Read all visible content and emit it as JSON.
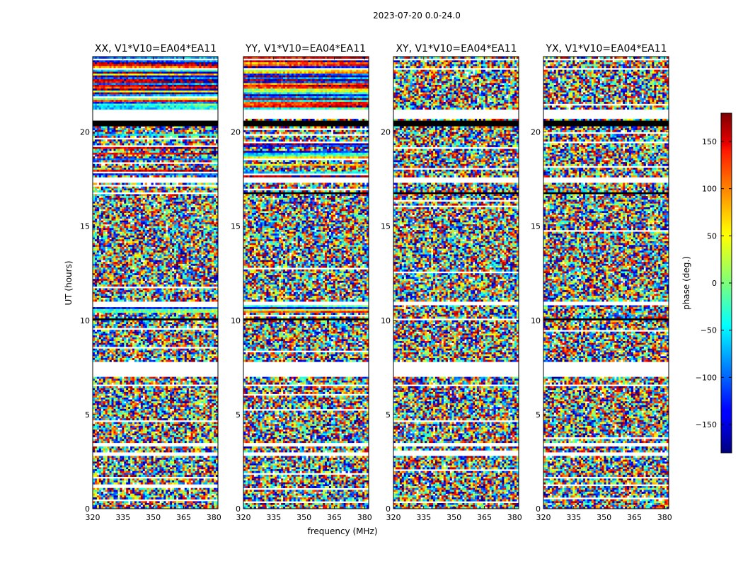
{
  "chart_data": {
    "type": "heatmap",
    "title": "2023-07-20 0.0-24.0",
    "xlabel": "frequency (MHz)",
    "ylabel": "UT (hours)",
    "xlim": [
      320,
      382
    ],
    "ylim": [
      0,
      24
    ],
    "x_ticks": [
      "320",
      "335",
      "350",
      "365",
      "380"
    ],
    "x_tick_values": [
      320,
      335,
      350,
      365,
      380
    ],
    "y_ticks": [
      "0",
      "5",
      "10",
      "15",
      "20"
    ],
    "y_tick_values": [
      0,
      5,
      10,
      15,
      20
    ],
    "panels": [
      {
        "title": "XX, V1*V10=EA04*EA11"
      },
      {
        "title": "YY, V1*V10=EA04*EA11"
      },
      {
        "title": "XY, V1*V10=EA04*EA11"
      },
      {
        "title": "YX, V1*V10=EA04*EA11"
      }
    ],
    "colorbar": {
      "label": "phase (deg.)",
      "range": [
        -180,
        180
      ],
      "ticks": [
        "150",
        "100",
        "50",
        "0",
        "−50",
        "−100",
        "−150"
      ],
      "tick_values": [
        150,
        100,
        50,
        0,
        -50,
        -100,
        -150
      ],
      "colormap": "jet"
    },
    "grid": false
  }
}
